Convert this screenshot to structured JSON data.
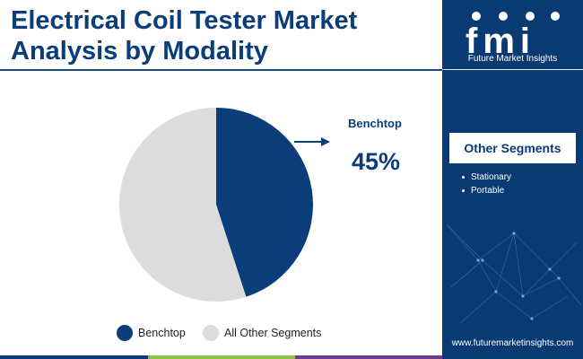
{
  "header": {
    "title": "Electrical Coil Tester Market Analysis by Modality"
  },
  "brand": {
    "logo_text": "fmi",
    "company": "Future Market Insights",
    "website": "www.futuremarketinsights.com"
  },
  "sidebar": {
    "heading": "Other Segments",
    "items": [
      "Stationary",
      "Portable"
    ]
  },
  "callout": {
    "label": "Benchtop",
    "value": "45%"
  },
  "colors": {
    "primary": "#0a3d7a",
    "secondary": "#dcdcdc",
    "panel": "#0a3a73",
    "accent_green": "#8bc34a",
    "accent_purple": "#6a3d8f"
  },
  "chart_data": {
    "type": "pie",
    "slices": [
      {
        "name": "Benchtop",
        "value": 45,
        "color": "#0a3d7a"
      },
      {
        "name": "All Other Segments",
        "value": 55,
        "color": "#dcdcdc"
      }
    ],
    "start_angle": "12 o'clock",
    "direction": "clockwise",
    "legend": {
      "position": "bottom",
      "entries": [
        "Benchtop",
        "All Other Segments"
      ]
    },
    "annotations": [
      {
        "label": "Benchtop",
        "value": "45%"
      }
    ]
  }
}
